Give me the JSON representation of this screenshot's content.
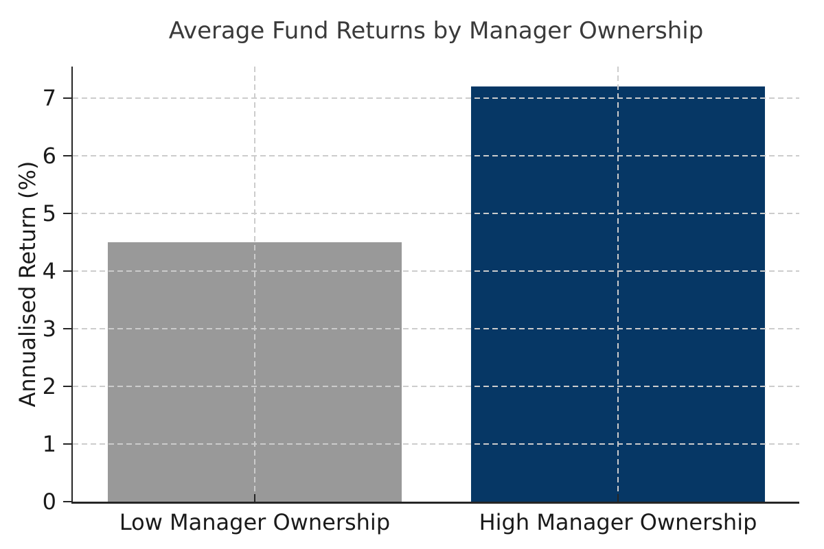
{
  "chart_data": {
    "type": "bar",
    "title": "Average Fund Returns by Manager Ownership",
    "ylabel": "Annualised Return (%)",
    "xlabel": "",
    "categories": [
      "Low Manager Ownership",
      "High Manager Ownership"
    ],
    "values": [
      4.5,
      7.2
    ],
    "bar_colors": [
      "#999999",
      "#063765"
    ],
    "yticks": [
      0,
      1,
      2,
      3,
      4,
      5,
      6,
      7
    ],
    "ylim": [
      0,
      7.55
    ],
    "grid": "dashed, horizontal at each y tick and vertical at each bar center, drawn above bars",
    "legend_position": "none"
  },
  "style": {
    "background": "#ffffff",
    "grid_color": "#cccccc",
    "spine_color": "#262626",
    "tick_label_color": "#1a1a1a",
    "title_color": "#3a3a3a",
    "axis_label_color": "#1a1a1a"
  }
}
